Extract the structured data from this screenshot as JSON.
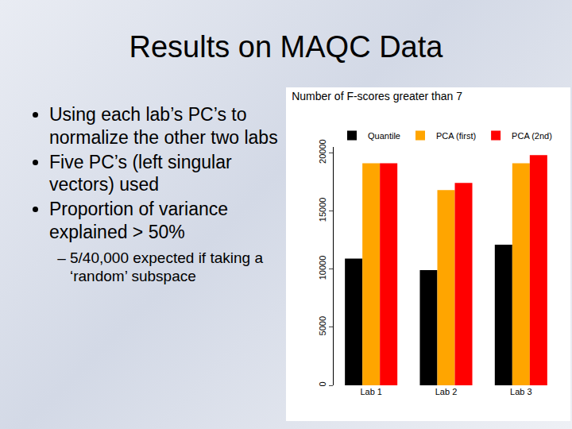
{
  "slide": {
    "title": "Results on MAQC Data",
    "bullets": [
      "Using each lab’s PC’s to normalize the other two labs",
      "Five PC’s (left singular vectors) used",
      "Proportion of variance explained > 50%"
    ],
    "sub_bullets": [
      "5/40,000 expected if taking a ‘random’ subspace"
    ]
  },
  "chart_data": {
    "type": "bar",
    "title": "Number of F-scores greater than 7",
    "categories": [
      "Lab 1",
      "Lab 2",
      "Lab 3"
    ],
    "series": [
      {
        "name": "Quantile",
        "color": "#000000",
        "values": [
          10900,
          9900,
          12100
        ]
      },
      {
        "name": "PCA (first)",
        "color": "#ffa500",
        "values": [
          19100,
          16800,
          19100
        ]
      },
      {
        "name": "PCA (2nd)",
        "color": "#ff0000",
        "values": [
          19100,
          17400,
          19800
        ]
      }
    ],
    "ylim": [
      0,
      20500
    ],
    "yticks": [
      0,
      5000,
      10000,
      15000,
      20000
    ],
    "grid": false,
    "legend": "top"
  }
}
